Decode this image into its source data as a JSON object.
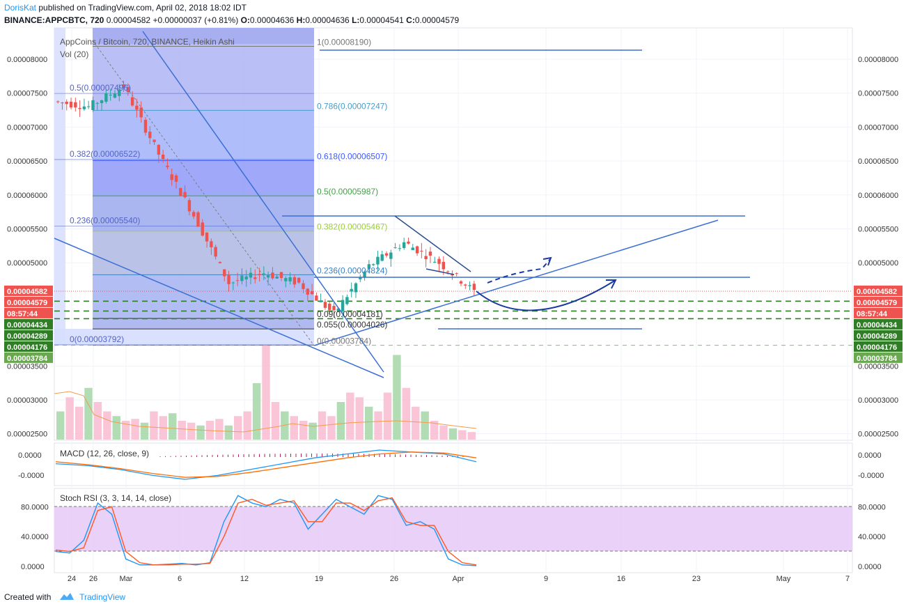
{
  "header": {
    "author": "DorisKat",
    "published_text": "published on TradingView.com, April 02, 2018 18:02 IDT",
    "symbol": "BINANCE:APPCBTC, 720",
    "last": "0.00004582",
    "change": "+0.00000037 (+0.81%)",
    "o_label": "O:",
    "o_value": "0.00004636",
    "h_label": "H:",
    "h_value": "0.00004636",
    "l_label": "L:",
    "l_value": "0.00004541",
    "c_label": "C:",
    "c_value": "0.00004579"
  },
  "legend": {
    "title": "AppCoins / Bitcoin, 720, BINANCE, Heikin Ashi",
    "vol": "Vol (20)",
    "macd": "MACD (12, 26, close, 9)",
    "stoch": "Stoch RSI (3, 3, 14, 14, close)"
  },
  "footer": {
    "created_with": "Created with",
    "brand": "TradingView"
  },
  "colors": {
    "up": "#26a69a",
    "down": "#ef5350",
    "trend": "#3b6fd4",
    "fib_bg": "#6f7ff5",
    "dashed_green": "#2f7d25",
    "macd": "#2196f3",
    "signal": "#ff6d00",
    "stoch_band": "#e1bee7"
  },
  "chart_data": [
    {
      "type": "candlestick",
      "title": "AppCoins / Bitcoin, 720, BINANCE, Heikin Ashi",
      "y_tick_labels": [
        "0.00008000",
        "0.00007500",
        "0.00007000",
        "0.00006500",
        "0.00006000",
        "0.00005500",
        "0.00005000",
        "0.00003500",
        "0.00003000",
        "0.00002500"
      ],
      "y_ticks": [
        8e-05,
        7.5e-05,
        7e-05,
        6.5e-05,
        6e-05,
        5.5e-05,
        5e-05,
        3.5e-05,
        3e-05,
        2.5e-05
      ],
      "x_tick_labels": [
        "24",
        "26",
        "Mar",
        "6",
        "12",
        "19",
        "26",
        "Apr",
        "9",
        "16",
        "23",
        "May",
        "7"
      ],
      "ohlc_trend": [
        [
          7.38e-05,
          7.5e-05,
          6.9e-05,
          7.3e-05
        ],
        [
          7.3e-05,
          7.9e-05,
          7e-05,
          7.6e-05
        ],
        [
          7.6e-05,
          7.75e-05,
          6.5e-05,
          6.6e-05
        ],
        [
          6.6e-05,
          6.8e-05,
          5.6e-05,
          5.7e-05
        ],
        [
          5.7e-05,
          5.75e-05,
          4.5e-05,
          4.7e-05
        ],
        [
          4.7e-05,
          5e-05,
          4.4e-05,
          4.85e-05
        ],
        [
          4.85e-05,
          5.8e-05,
          4.4e-05,
          4.7e-05
        ],
        [
          4.7e-05,
          4.8e-05,
          3.8e-05,
          4.25e-05
        ],
        [
          4.25e-05,
          5.3e-05,
          4.2e-05,
          4.95e-05
        ],
        [
          4.95e-05,
          5.7e-05,
          4.8e-05,
          5.3e-05
        ],
        [
          5.3e-05,
          5.45e-05,
          4.9e-05,
          5e-05
        ],
        [
          5e-05,
          5.1e-05,
          4.54e-05,
          4.58e-05
        ]
      ],
      "fib_left": [
        {
          "label": "0.5(0.00007496)",
          "value": 7.496e-05
        },
        {
          "label": "0.382(0.00006522)",
          "value": 6.522e-05
        },
        {
          "label": "0.236(0.00005540)",
          "value": 5.54e-05
        },
        {
          "label": "0(0.00003792)",
          "value": 3.792e-05
        }
      ],
      "fib_right": [
        {
          "label": "1(0.00008190)",
          "value": 8.19e-05
        },
        {
          "label": "0.786(0.00007247)",
          "value": 7.247e-05
        },
        {
          "label": "0.618(0.00006507)",
          "value": 6.507e-05
        },
        {
          "label": "0.5(0.00005987)",
          "value": 5.987e-05
        },
        {
          "label": "0.382(0.00005467)",
          "value": 5.467e-05
        },
        {
          "label": "0.236(0.00004824)",
          "value": 4.824e-05
        },
        {
          "label": "0.09(0.00004181)",
          "value": 4.181e-05
        },
        {
          "label": "0.055(0.00004026)",
          "value": 4.026e-05
        },
        {
          "label": "0(0.00003784)",
          "value": 3.784e-05
        }
      ],
      "price_labels": [
        {
          "text": "0.00004582",
          "value": 4.582e-05,
          "color": "#ef5350"
        },
        {
          "text": "0.00004579",
          "value": 4.579e-05,
          "color": "#ef5350"
        },
        {
          "text": "08:57:44",
          "value": 4.44e-05,
          "color": "#ef5350"
        },
        {
          "text": "0.00004434",
          "value": 4.434e-05,
          "color": "#2f7d25"
        },
        {
          "text": "0.00004289",
          "value": 4.289e-05,
          "color": "#2f7d25"
        },
        {
          "text": "0.00004176",
          "value": 4.176e-05,
          "color": "#2f7d25"
        },
        {
          "text": "0.00003784",
          "value": 3.784e-05,
          "color": "#6aa84f"
        }
      ],
      "support_lines": [
        4.434e-05,
        4.289e-05,
        4.176e-05,
        3.784e-05
      ]
    },
    {
      "type": "bar",
      "title": "Vol (20)",
      "values_relative": [
        0.3,
        0.45,
        0.35,
        0.55,
        0.4,
        0.3,
        0.25,
        0.2,
        0.22,
        0.18,
        0.3,
        0.25,
        0.28,
        0.2,
        0.18,
        0.15,
        0.2,
        0.22,
        0.15,
        0.25,
        0.3,
        0.6,
        1.0,
        0.4,
        0.3,
        0.25,
        0.2,
        0.18,
        0.3,
        0.25,
        0.4,
        0.5,
        0.45,
        0.35,
        0.3,
        0.5,
        0.9,
        0.55,
        0.35,
        0.3,
        0.2,
        0.15,
        0.12,
        0.1,
        0.08
      ]
    },
    {
      "type": "line",
      "title": "MACD (12, 26, close, 9)",
      "y_tick_labels": [
        "0.0000",
        "-0.0000"
      ],
      "series": [
        {
          "name": "MACD",
          "values": [
            -0.2,
            -0.3,
            -0.5,
            -0.8,
            -1.0,
            -0.8,
            -0.5,
            -0.2,
            0.1,
            0.3,
            0.5,
            0.4,
            0.3,
            -0.1
          ]
        },
        {
          "name": "Signal",
          "values": [
            -0.1,
            -0.25,
            -0.45,
            -0.7,
            -0.9,
            -0.85,
            -0.65,
            -0.4,
            -0.15,
            0.1,
            0.3,
            0.4,
            0.35,
            0.1
          ]
        }
      ]
    },
    {
      "type": "line",
      "title": "Stoch RSI (3, 3, 14, 14, close)",
      "y_tick_labels": [
        "80.0000",
        "40.0000",
        "0.0000"
      ],
      "y_ticks": [
        80,
        40,
        0
      ],
      "ylim": [
        0,
        100
      ],
      "series": [
        {
          "name": "K",
          "values": [
            20,
            18,
            35,
            85,
            70,
            10,
            2,
            2,
            3,
            4,
            2,
            5,
            60,
            95,
            85,
            80,
            90,
            85,
            50,
            70,
            90,
            80,
            70,
            95,
            90,
            55,
            60,
            50,
            10,
            2,
            1
          ]
        },
        {
          "name": "D",
          "values": [
            22,
            20,
            25,
            75,
            80,
            20,
            5,
            2,
            2,
            3,
            3,
            4,
            40,
            85,
            90,
            82,
            85,
            88,
            60,
            60,
            85,
            85,
            75,
            88,
            92,
            60,
            55,
            55,
            20,
            5,
            2
          ]
        }
      ]
    }
  ]
}
